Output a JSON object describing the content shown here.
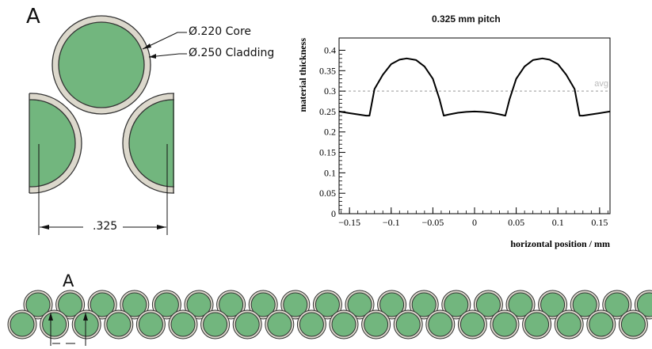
{
  "diagram": {
    "section_label": "A",
    "core_label": "Ø.220 Core",
    "cladding_label": "Ø.250 Cladding",
    "pitch_dimension": ".325",
    "ribbon_label": "A"
  },
  "colors": {
    "core_fill": "#72b67e",
    "cladding_fill": "#dcd8cc",
    "outline": "#333333",
    "avg_line": "#bbbbbb",
    "curve": "#000000"
  },
  "chart_data": {
    "type": "line",
    "title": "0.325 mm pitch",
    "xlabel": "horizontal position / mm",
    "ylabel": "material thickness",
    "xlim": [
      -0.1625,
      0.1625
    ],
    "ylim": [
      0,
      0.43
    ],
    "x_ticks": [
      "−0.15",
      "−0.1",
      "−0.05",
      "0",
      "0.05",
      "0.1",
      "0.15"
    ],
    "y_ticks": [
      "0",
      "0.05",
      "0.1",
      "0.15",
      "0.2",
      "0.25",
      "0.3",
      "0.35",
      "0.4"
    ],
    "avg_label": "avg",
    "avg_value": 0.3,
    "series": [
      {
        "x": [
          -0.1625,
          -0.15,
          -0.13,
          -0.126,
          -0.12,
          -0.11,
          -0.1,
          -0.09,
          -0.0813,
          -0.07,
          -0.06,
          -0.05,
          -0.042,
          -0.037,
          -0.03,
          -0.02,
          -0.01,
          0,
          0.01,
          0.02,
          0.03,
          0.037,
          0.042,
          0.05,
          0.06,
          0.07,
          0.0813,
          0.09,
          0.1,
          0.11,
          0.12,
          0.126,
          0.13,
          0.15,
          0.1625
        ],
        "y": [
          0.25,
          0.246,
          0.24,
          0.24,
          0.305,
          0.34,
          0.366,
          0.377,
          0.38,
          0.376,
          0.36,
          0.33,
          0.28,
          0.24,
          0.243,
          0.247,
          0.249,
          0.25,
          0.249,
          0.247,
          0.243,
          0.24,
          0.28,
          0.33,
          0.36,
          0.376,
          0.38,
          0.377,
          0.366,
          0.34,
          0.305,
          0.24,
          0.24,
          0.246,
          0.25
        ]
      }
    ]
  }
}
